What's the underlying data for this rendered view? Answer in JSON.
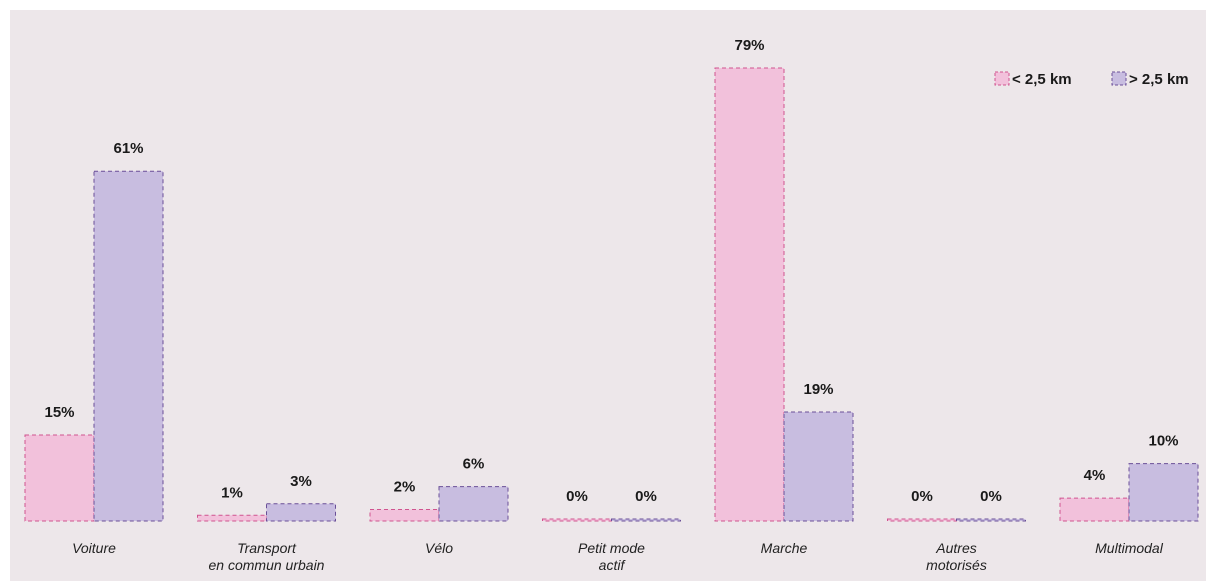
{
  "chart_data": {
    "type": "bar",
    "categories": [
      [
        "Voiture"
      ],
      [
        "Transport",
        "en commun urbain"
      ],
      [
        "Vélo"
      ],
      [
        "Petit mode",
        "actif"
      ],
      [
        "Marche"
      ],
      [
        "Autres",
        "motorisés"
      ],
      [
        "Multimodal"
      ]
    ],
    "series": [
      {
        "name": "< 2,5 km",
        "values": [
          15,
          1,
          2,
          0,
          79,
          0,
          4
        ],
        "labels": [
          "15%",
          "1%",
          "2%",
          "0%",
          "79%",
          "0%",
          "4%"
        ],
        "fill": "#f2c1db",
        "stroke": "#d0548f"
      },
      {
        "name": "> 2,5 km",
        "values": [
          61,
          3,
          6,
          0,
          19,
          0,
          10
        ],
        "labels": [
          "61%",
          "3%",
          "6%",
          "0%",
          "19%",
          "0%",
          "10%"
        ],
        "fill": "#c8bde0",
        "stroke": "#6a4f98"
      }
    ],
    "ylim": [
      0,
      79
    ],
    "legend_position": "top-right",
    "grid": false
  }
}
